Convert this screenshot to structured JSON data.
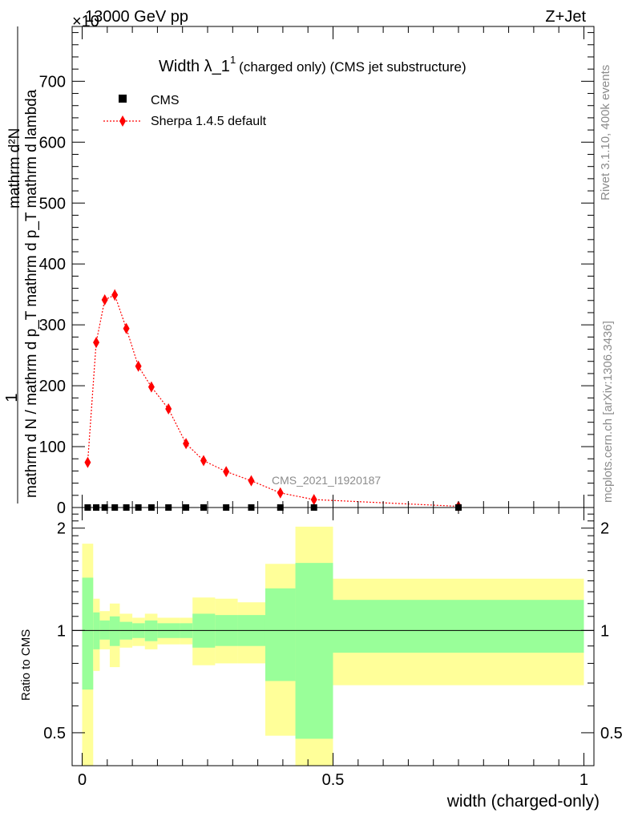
{
  "header": {
    "left": "13000 GeV pp",
    "right": "Z+Jet",
    "exponent": "×10"
  },
  "side": {
    "rivet": "Rivet 3.1.10,  400k events",
    "mcplots": "mcplots.cern.ch [arXiv:1306.3436]"
  },
  "watermark": "CMS_2021_I1920187",
  "chart_data": {
    "type": "scatter",
    "title": {
      "main": "Width λ_1",
      "sup": "1",
      "sub": "(charged only) (CMS jet substructure)"
    },
    "xlabel": "width (charged-only)",
    "ylabel_top": "1",
    "ylabel_mid": "mathrm d N / mathrm d p_T mathrm d p_T mathrm d lambda",
    "ylabel_num": "mathrm d²N",
    "ratio_ylabel": "Ratio to CMS",
    "xlim": [
      -0.02,
      1.02
    ],
    "ylim": [
      0,
      790
    ],
    "ratio_ylim": [
      0.4,
      2.3
    ],
    "ratio_scale": "log",
    "xticks": [
      "0",
      "0.5",
      "1"
    ],
    "xtick_values": [
      0,
      0.5,
      1
    ],
    "yticks": [
      "0",
      "100",
      "200",
      "300",
      "400",
      "500",
      "600",
      "700"
    ],
    "ytick_values": [
      0,
      100,
      200,
      300,
      400,
      500,
      600,
      700
    ],
    "ratio_yticks": [
      "0.5",
      "1",
      "2"
    ],
    "ratio_ytick_values": [
      0.5,
      1,
      2
    ],
    "legend": {
      "position": "top-left",
      "cms": "CMS",
      "mc": "Sherpa 1.4.5 default"
    },
    "colors": {
      "mc": "#ff0000",
      "green": "#99ff99",
      "yellow": "#ffff99",
      "data": "#000000"
    },
    "bins": [
      {
        "lo": 0.0,
        "hi": 0.022,
        "sherpa": 74,
        "err": 3
      },
      {
        "lo": 0.022,
        "hi": 0.035,
        "sherpa": 271,
        "err": 8
      },
      {
        "lo": 0.035,
        "hi": 0.055,
        "sherpa": 341,
        "err": 8
      },
      {
        "lo": 0.055,
        "hi": 0.075,
        "sherpa": 349,
        "err": 9
      },
      {
        "lo": 0.075,
        "hi": 0.1,
        "sherpa": 294,
        "err": 8
      },
      {
        "lo": 0.1,
        "hi": 0.125,
        "sherpa": 232,
        "err": 7
      },
      {
        "lo": 0.125,
        "hi": 0.15,
        "sherpa": 198,
        "err": 6
      },
      {
        "lo": 0.15,
        "hi": 0.195,
        "sherpa": 162,
        "err": 5
      },
      {
        "lo": 0.195,
        "hi": 0.22,
        "sherpa": 105,
        "err": 4
      },
      {
        "lo": 0.22,
        "hi": 0.265,
        "sherpa": 77,
        "err": 3
      },
      {
        "lo": 0.265,
        "hi": 0.31,
        "sherpa": 59,
        "err": 2
      },
      {
        "lo": 0.31,
        "hi": 0.365,
        "sherpa": 44,
        "err": 2
      },
      {
        "lo": 0.365,
        "hi": 0.425,
        "sherpa": 24,
        "err": 1
      },
      {
        "lo": 0.425,
        "hi": 0.5,
        "sherpa": 13,
        "err": 1
      },
      {
        "lo": 0.5,
        "hi": 1.0,
        "sherpa": 2,
        "err": 1
      }
    ],
    "cms_points": [
      {
        "x": 0.011,
        "y": 0
      },
      {
        "x": 0.028,
        "y": 0
      },
      {
        "x": 0.045,
        "y": 0
      },
      {
        "x": 0.065,
        "y": 0
      },
      {
        "x": 0.088,
        "y": 0
      },
      {
        "x": 0.112,
        "y": 0
      },
      {
        "x": 0.138,
        "y": 0
      },
      {
        "x": 0.172,
        "y": 0
      },
      {
        "x": 0.207,
        "y": 0
      },
      {
        "x": 0.242,
        "y": 0
      },
      {
        "x": 0.287,
        "y": 0
      },
      {
        "x": 0.337,
        "y": 0
      },
      {
        "x": 0.395,
        "y": 0
      },
      {
        "x": 0.462,
        "y": 0
      },
      {
        "x": 0.75,
        "y": 0
      }
    ],
    "sherpa_points": [
      {
        "x": 0.011,
        "y": 74
      },
      {
        "x": 0.028,
        "y": 271
      },
      {
        "x": 0.045,
        "y": 341
      },
      {
        "x": 0.065,
        "y": 349
      },
      {
        "x": 0.088,
        "y": 294
      },
      {
        "x": 0.112,
        "y": 232
      },
      {
        "x": 0.138,
        "y": 198
      },
      {
        "x": 0.172,
        "y": 162
      },
      {
        "x": 0.207,
        "y": 105
      },
      {
        "x": 0.242,
        "y": 77
      },
      {
        "x": 0.287,
        "y": 59
      },
      {
        "x": 0.337,
        "y": 44
      },
      {
        "x": 0.395,
        "y": 24
      },
      {
        "x": 0.462,
        "y": 13
      },
      {
        "x": 0.75,
        "y": 2
      }
    ],
    "ratio_bands": [
      {
        "lo": 0.0,
        "hi": 0.022,
        "g": [
          0.67,
          1.43
        ],
        "y": [
          0.35,
          1.8
        ]
      },
      {
        "lo": 0.022,
        "hi": 0.035,
        "g": [
          0.88,
          1.13
        ],
        "y": [
          0.76,
          1.24
        ]
      },
      {
        "lo": 0.035,
        "hi": 0.055,
        "g": [
          0.94,
          1.07
        ],
        "y": [
          0.88,
          1.14
        ]
      },
      {
        "lo": 0.055,
        "hi": 0.075,
        "g": [
          0.9,
          1.1
        ],
        "y": [
          0.78,
          1.2
        ]
      },
      {
        "lo": 0.075,
        "hi": 0.1,
        "g": [
          0.94,
          1.06
        ],
        "y": [
          0.89,
          1.12
        ]
      },
      {
        "lo": 0.1,
        "hi": 0.125,
        "g": [
          0.95,
          1.05
        ],
        "y": [
          0.9,
          1.09
        ]
      },
      {
        "lo": 0.125,
        "hi": 0.15,
        "g": [
          0.93,
          1.07
        ],
        "y": [
          0.88,
          1.12
        ]
      },
      {
        "lo": 0.15,
        "hi": 0.195,
        "g": [
          0.95,
          1.05
        ],
        "y": [
          0.91,
          1.09
        ]
      },
      {
        "lo": 0.195,
        "hi": 0.22,
        "g": [
          0.95,
          1.05
        ],
        "y": [
          0.91,
          1.09
        ]
      },
      {
        "lo": 0.22,
        "hi": 0.265,
        "g": [
          0.89,
          1.12
        ],
        "y": [
          0.79,
          1.25
        ]
      },
      {
        "lo": 0.265,
        "hi": 0.31,
        "g": [
          0.9,
          1.11
        ],
        "y": [
          0.8,
          1.24
        ]
      },
      {
        "lo": 0.31,
        "hi": 0.365,
        "g": [
          0.9,
          1.11
        ],
        "y": [
          0.8,
          1.21
        ]
      },
      {
        "lo": 0.365,
        "hi": 0.425,
        "g": [
          0.71,
          1.33
        ],
        "y": [
          0.49,
          1.57
        ]
      },
      {
        "lo": 0.425,
        "hi": 0.5,
        "g": [
          0.48,
          1.58
        ],
        "y": [
          0.36,
          2.02
        ]
      },
      {
        "lo": 0.5,
        "hi": 1.0,
        "g": [
          0.86,
          1.23
        ],
        "y": [
          0.69,
          1.42
        ]
      }
    ]
  }
}
